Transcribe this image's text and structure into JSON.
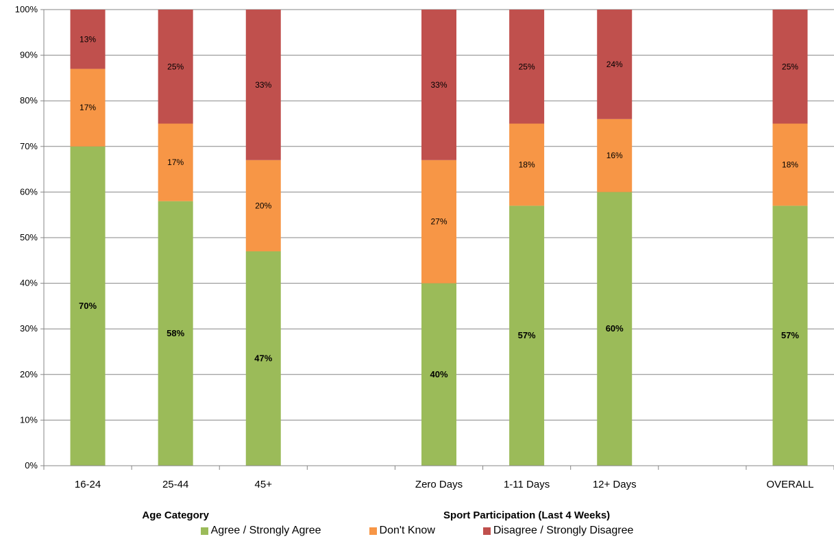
{
  "chart_data": {
    "type": "bar",
    "stacked": true,
    "ylim": [
      0,
      100
    ],
    "yticks": [
      "0%",
      "10%",
      "20%",
      "30%",
      "40%",
      "50%",
      "60%",
      "70%",
      "80%",
      "90%",
      "100%"
    ],
    "grid": true,
    "slots": [
      "16-24",
      "25-44",
      "45+",
      "",
      "Zero Days",
      "1-11 Days",
      "12+ Days",
      "",
      "OVERALL"
    ],
    "categories": [
      "16-24",
      "25-44",
      "45+",
      "Zero Days",
      "1-11 Days",
      "12+ Days",
      "OVERALL"
    ],
    "groups": [
      {
        "label": "Age Category",
        "categories": [
          "16-24",
          "25-44",
          "45+"
        ]
      },
      {
        "label": "Sport Participation (Last 4 Weeks)",
        "categories": [
          "Zero Days",
          "1-11 Days",
          "12+ Days"
        ]
      }
    ],
    "series": [
      {
        "name": "Agree / Strongly Agree",
        "color": "#9bbb59",
        "values": [
          70,
          58,
          47,
          40,
          57,
          60,
          57
        ],
        "labels": [
          "70%",
          "58%",
          "47%",
          "40%",
          "57%",
          "60%",
          "57%"
        ]
      },
      {
        "name": "Don't Know",
        "color": "#f79646",
        "values": [
          17,
          17,
          20,
          27,
          18,
          16,
          18
        ],
        "labels": [
          "17%",
          "17%",
          "20%",
          "27%",
          "18%",
          "16%",
          "18%"
        ]
      },
      {
        "name": "Disagree / Strongly Disagree",
        "color": "#c0504d",
        "values": [
          13,
          25,
          33,
          33,
          25,
          24,
          25
        ],
        "labels": [
          "13%",
          "25%",
          "33%",
          "33%",
          "25%",
          "24%",
          "25%"
        ]
      }
    ],
    "legend_position": "bottom"
  }
}
